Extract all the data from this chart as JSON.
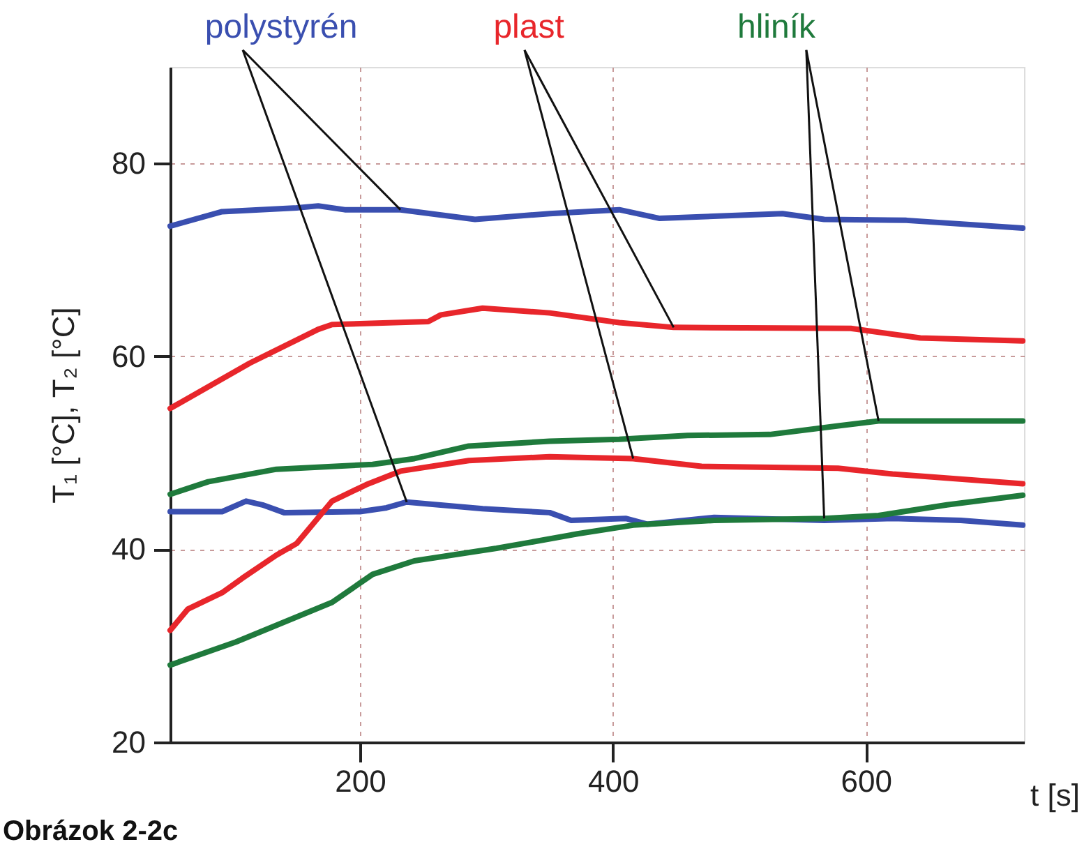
{
  "chart_data": {
    "type": "line",
    "xlabel": "t [s]",
    "ylabel": "T₁ [°C], T₂ [°C]",
    "xlim": [
      50,
      725
    ],
    "xticks": [
      200,
      400,
      600
    ],
    "ylim": [
      20,
      90
    ],
    "yticks": [
      20,
      40,
      60,
      80
    ],
    "grid": true,
    "legend": false,
    "line_style": "solid",
    "marker": "none",
    "annotations": [
      "Obrázok 2-2c"
    ],
    "series": [
      {
        "name": "polystyrén",
        "color": "#3a4fb0",
        "x": [
          50,
          91,
          150,
          167,
          188,
          232,
          291,
          350,
          405,
          437,
          534,
          567,
          632,
          724
        ],
        "values": [
          73.5,
          75,
          75.4,
          75.6,
          75.2,
          75.2,
          74.2,
          74.8,
          75.2,
          74.3,
          74.8,
          74.2,
          74.1,
          73.3
        ]
      },
      {
        "color": "#3a4fb0",
        "x": [
          50,
          91,
          110,
          123,
          140,
          200,
          221,
          237,
          297,
          350,
          367,
          410,
          427,
          480,
          567,
          621,
          675,
          724
        ],
        "values": [
          43.9,
          43.9,
          45,
          44.6,
          43.8,
          43.9,
          44.3,
          44.9,
          44.2,
          43.8,
          43,
          43.2,
          42.6,
          43.3,
          43,
          43.2,
          43,
          42.5
        ]
      },
      {
        "name": "plast",
        "color": "#e8262b",
        "x": [
          50,
          113,
          167,
          178,
          254,
          264,
          297,
          350,
          405,
          448,
          588,
          643,
          724
        ],
        "values": [
          54.6,
          59.3,
          62.8,
          63.3,
          63.6,
          64.3,
          65,
          64.5,
          63.5,
          63,
          62.9,
          61.9,
          61.6
        ]
      },
      {
        "color": "#e8262b",
        "x": [
          50,
          64,
          91,
          107,
          134,
          150,
          178,
          205,
          232,
          286,
          350,
          416,
          470,
          578,
          621,
          724
        ],
        "values": [
          31.6,
          33.8,
          35.5,
          37,
          39.4,
          40.6,
          45,
          46.7,
          48.1,
          49.2,
          49.6,
          49.4,
          48.6,
          48.4,
          47.8,
          46.8
        ]
      },
      {
        "name": "hliník",
        "color": "#1f7a3c",
        "x": [
          50,
          80,
          134,
          210,
          243,
          286,
          350,
          405,
          459,
          524,
          578,
          610,
          724
        ],
        "values": [
          45.7,
          47,
          48.3,
          48.8,
          49.4,
          50.7,
          51.2,
          51.4,
          51.8,
          51.9,
          52.8,
          53.3,
          53.3
        ]
      },
      {
        "color": "#1f7a3c",
        "x": [
          50,
          102,
          178,
          210,
          243,
          308,
          372,
          416,
          480,
          567,
          610,
          664,
          724
        ],
        "values": [
          28,
          30.4,
          34.5,
          37.4,
          38.8,
          40.1,
          41.6,
          42.5,
          43,
          43.2,
          43.5,
          44.6,
          45.6
        ]
      }
    ]
  }
}
